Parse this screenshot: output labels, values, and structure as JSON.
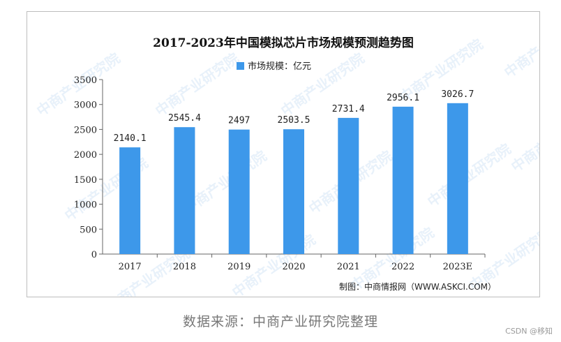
{
  "chart_data": {
    "type": "bar",
    "title": "2017-2023年中国模拟芯片市场规模预测趋势图",
    "legend_label": "市场规模：亿元",
    "legend_position": "top-center",
    "categories": [
      "2017",
      "2018",
      "2019",
      "2020",
      "2021",
      "2022",
      "2023E"
    ],
    "series": [
      {
        "name": "市场规模：亿元",
        "values": [
          2140.1,
          2545.4,
          2497,
          2503.5,
          2731.4,
          2956.1,
          3026.7
        ]
      }
    ],
    "value_labels": [
      "2140.1",
      "2545.4",
      "2497",
      "2503.5",
      "2731.4",
      "2956.1",
      "3026.7"
    ],
    "y_ticks": [
      0,
      500,
      1000,
      1500,
      2000,
      2500,
      3000,
      3500
    ],
    "ylim": [
      0,
      3500
    ],
    "grid": false,
    "bar_color": "#3d98ea",
    "credit": "制图：中商情报网（WWW.ASKCI.COM）"
  },
  "watermark_text": "中商产业研究院",
  "source_caption": "数据来源：中商产业研究院整理",
  "brand_tag": "CSDN @移知"
}
